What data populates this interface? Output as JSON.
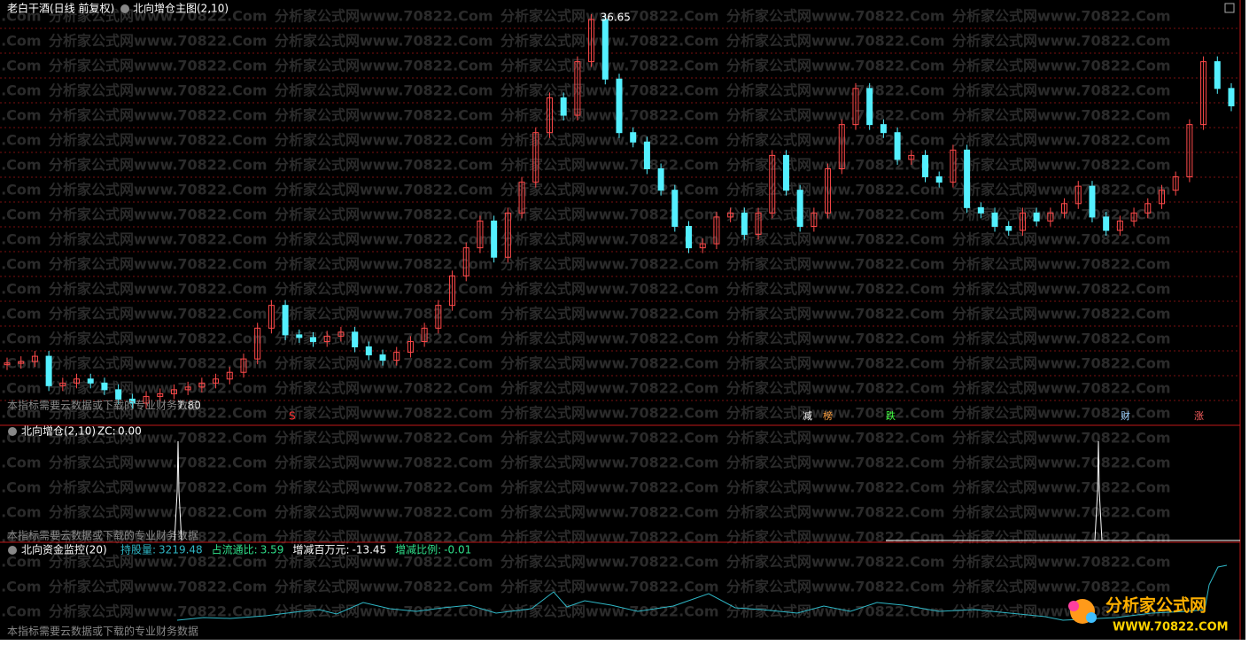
{
  "header": {
    "stock": "老白干酒(日线 前复权)",
    "indicator": "北向增仓主图(2,10)"
  },
  "watermark": "分析家公式网www.70822.Com",
  "chart_data": {
    "type": "candlestick",
    "ylim": [
      7.8,
      36.65
    ],
    "closes": [
      11.0,
      11.1,
      11.5,
      9.3,
      9.5,
      9.8,
      9.5,
      9.0,
      8.3,
      8.0,
      8.5,
      8.7,
      9.0,
      9.2,
      9.5,
      9.8,
      10.3,
      11.3,
      13.6,
      15.3,
      13.1,
      12.9,
      12.6,
      13.0,
      13.3,
      12.2,
      11.6,
      11.2,
      11.8,
      12.6,
      13.6,
      15.3,
      17.5,
      19.6,
      21.6,
      18.9,
      22.2,
      24.5,
      28.2,
      30.8,
      29.5,
      33.5,
      36.65,
      32.2,
      28.2,
      27.5,
      25.5,
      23.9,
      21.2,
      19.6,
      19.9,
      21.9,
      22.2,
      20.6,
      22.2,
      26.5,
      23.9,
      21.2,
      22.2,
      25.5,
      28.8,
      31.5,
      28.8,
      28.2,
      26.2,
      26.5,
      24.9,
      24.5,
      26.9,
      22.6,
      22.2,
      21.2,
      20.9,
      22.2,
      21.6,
      22.2,
      22.9,
      24.2,
      21.9,
      20.9,
      21.6,
      22.2,
      22.9,
      23.9,
      24.9,
      28.8,
      33.5,
      31.5,
      30.2
    ],
    "colors": {
      "up": "#ff4a4a",
      "down": "#54f0ff"
    },
    "annotations": [
      {
        "text": "36.65",
        "value": 36.65
      },
      {
        "text": "7.80",
        "value": 7.8
      }
    ]
  },
  "signals": [
    "S",
    "减",
    "榜",
    "跌",
    "财",
    "涨"
  ],
  "notice": "本指标需要云数据或下载的专业财务数据",
  "panel2": {
    "title": "北向增仓(2,10)",
    "zc_label": "ZC:",
    "zc_value": "0.00"
  },
  "panel3": {
    "title": "北向资金监控(20)",
    "fields": [
      {
        "label": "持股量:",
        "value": "3219.48"
      },
      {
        "label": "占流通比:",
        "value": "3.59"
      },
      {
        "label": "增减百万元:",
        "value": "-13.45"
      },
      {
        "label": "增减比例:",
        "value": "-0.01"
      }
    ]
  },
  "logo": {
    "name": "分析家公式网",
    "url": "WWW.70822.COM"
  }
}
